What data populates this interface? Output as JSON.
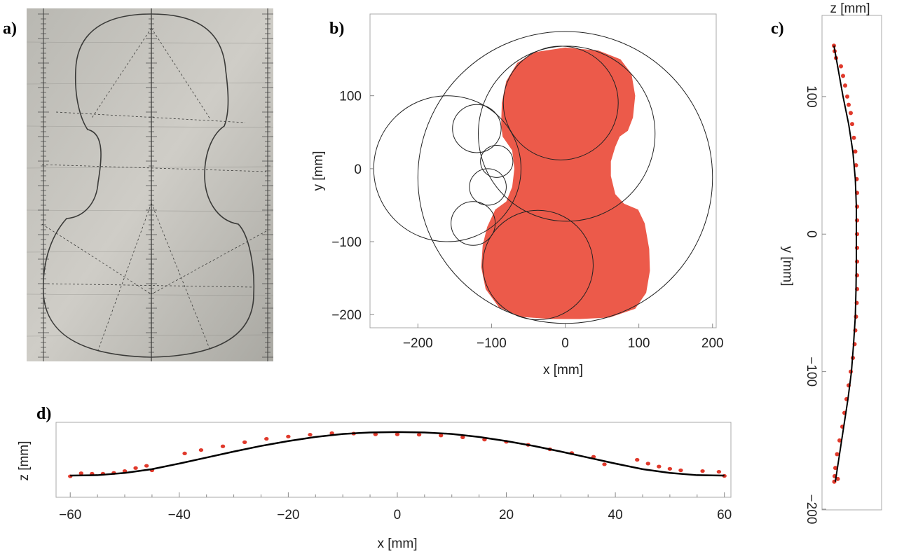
{
  "panels": {
    "a": "a)",
    "b": "b)",
    "c": "c)",
    "d": "d)"
  },
  "colors": {
    "data_points": "#e0392b",
    "region_fill": "#ec5a4a",
    "fit_curve": "#000000",
    "circles": "#222222",
    "frame": "#a8a8a8"
  },
  "photo": {
    "description_icon": "violin-plan-drawing-photo"
  },
  "chart_data": [
    {
      "id": "b",
      "type": "scatter",
      "xlabel": "x [mm]",
      "ylabel": "y [mm]",
      "xlim": [
        -265,
        205
      ],
      "ylim": [
        -218,
        212
      ],
      "xticks": [
        -200,
        -100,
        0,
        100,
        200
      ],
      "xtick_labels": [
        "−200",
        "−100",
        "0",
        "100",
        "200"
      ],
      "yticks": [
        -200,
        -100,
        0,
        100
      ],
      "ytick_labels": [
        "−200",
        "−100",
        "0",
        "100"
      ],
      "grid": false,
      "filled_region": [
        [
          0,
          166
        ],
        [
          45,
          162
        ],
        [
          75,
          150
        ],
        [
          90,
          130
        ],
        [
          95,
          100
        ],
        [
          92,
          70
        ],
        [
          85,
          52
        ],
        [
          74,
          44
        ],
        [
          68,
          30
        ],
        [
          62,
          10
        ],
        [
          62,
          -10
        ],
        [
          68,
          -35
        ],
        [
          80,
          -48
        ],
        [
          99,
          -56
        ],
        [
          108,
          -75
        ],
        [
          114,
          -110
        ],
        [
          115,
          -140
        ],
        [
          110,
          -170
        ],
        [
          95,
          -192
        ],
        [
          60,
          -204
        ],
        [
          20,
          -206
        ],
        [
          -20,
          -206
        ],
        [
          -60,
          -203
        ],
        [
          -90,
          -190
        ],
        [
          -108,
          -165
        ],
        [
          -114,
          -135
        ],
        [
          -112,
          -105
        ],
        [
          -106,
          -80
        ],
        [
          -95,
          -56
        ],
        [
          -80,
          -45
        ],
        [
          -72,
          -25
        ],
        [
          -69,
          0
        ],
        [
          -72,
          25
        ],
        [
          -85,
          44
        ],
        [
          -87,
          60
        ],
        [
          -86,
          90
        ],
        [
          -80,
          120
        ],
        [
          -65,
          145
        ],
        [
          -40,
          160
        ]
      ],
      "circles": [
        {
          "cx": 0,
          "cy": -12,
          "r": 200
        },
        {
          "cx": -160,
          "cy": 0,
          "r": 100
        },
        {
          "cx": 2,
          "cy": 48,
          "r": 120
        },
        {
          "cx": -6,
          "cy": 90,
          "r": 78
        },
        {
          "cx": -37,
          "cy": -132,
          "r": 75
        },
        {
          "cx": -120,
          "cy": 55,
          "r": 33
        },
        {
          "cx": -93,
          "cy": 10,
          "r": 22
        },
        {
          "cx": -105,
          "cy": -25,
          "r": 25
        },
        {
          "cx": -125,
          "cy": -75,
          "r": 30
        }
      ]
    },
    {
      "id": "c",
      "type": "scatter",
      "xlabel": "z [mm]",
      "ylabel": "y [mm]",
      "zlim": [
        0,
        17
      ],
      "ylim": [
        -200.5,
        159
      ],
      "yticks": [
        -200,
        -100,
        0,
        100
      ],
      "ytick_labels": [
        "−200",
        "−100",
        "0",
        "100"
      ],
      "points": [
        [
          137,
          3.4
        ],
        [
          133,
          3.6
        ],
        [
          128,
          4
        ],
        [
          122,
          5.4
        ],
        [
          115,
          6
        ],
        [
          108,
          6.6
        ],
        [
          100,
          7.2
        ],
        [
          94,
          7.6
        ],
        [
          88,
          8.2
        ],
        [
          80,
          8.6
        ],
        [
          70,
          9.1
        ],
        [
          60,
          9.5
        ],
        [
          50,
          9.7
        ],
        [
          40,
          9.9
        ],
        [
          30,
          10
        ],
        [
          20,
          10
        ],
        [
          10,
          10
        ],
        [
          0,
          10
        ],
        [
          -10,
          10
        ],
        [
          -20,
          10
        ],
        [
          -30,
          10
        ],
        [
          -40,
          10
        ],
        [
          -50,
          9.9
        ],
        [
          -60,
          9.7
        ],
        [
          -70,
          9.5
        ],
        [
          -80,
          9.3
        ],
        [
          -90,
          8.8
        ],
        [
          -100,
          8.2
        ],
        [
          -110,
          7.6
        ],
        [
          -120,
          7
        ],
        [
          -130,
          6.4
        ],
        [
          -140,
          5.8
        ],
        [
          -150,
          5
        ],
        [
          -160,
          4.3
        ],
        [
          -170,
          3.8
        ],
        [
          -176,
          3.6
        ],
        [
          -178,
          4.5
        ],
        [
          -180,
          3.5
        ]
      ],
      "fit_curve": [
        [
          137,
          3.4
        ],
        [
          120,
          4.6
        ],
        [
          100,
          6
        ],
        [
          80,
          7.6
        ],
        [
          60,
          8.8
        ],
        [
          40,
          9.5
        ],
        [
          20,
          9.8
        ],
        [
          0,
          9.8
        ],
        [
          -20,
          9.8
        ],
        [
          -40,
          9.7
        ],
        [
          -60,
          9.5
        ],
        [
          -80,
          9.0
        ],
        [
          -100,
          8.4
        ],
        [
          -120,
          7.4
        ],
        [
          -140,
          6.2
        ],
        [
          -160,
          5
        ],
        [
          -180,
          3.8
        ]
      ]
    },
    {
      "id": "d",
      "type": "scatter",
      "xlabel": "x [mm]",
      "ylabel": "z [mm]",
      "xlim": [
        -62.6,
        61.2
      ],
      "zlim": [
        -6.2,
        13.8
      ],
      "xticks": [
        -60,
        -40,
        -20,
        0,
        20,
        40,
        60
      ],
      "xtick_labels": [
        "−60",
        "−40",
        "−20",
        "0",
        "20",
        "40",
        "60"
      ],
      "points": [
        [
          -60,
          -0.6
        ],
        [
          -58,
          0.2
        ],
        [
          -56,
          0.1
        ],
        [
          -54,
          0.1
        ],
        [
          -52,
          0.3
        ],
        [
          -50,
          0.8
        ],
        [
          -48,
          1.6
        ],
        [
          -46,
          2.2
        ],
        [
          -45,
          1.0
        ],
        [
          -39,
          5.5
        ],
        [
          -36,
          6.4
        ],
        [
          -32,
          7.4
        ],
        [
          -28,
          8.5
        ],
        [
          -24,
          9.4
        ],
        [
          -20,
          10.0
        ],
        [
          -16,
          10.5
        ],
        [
          -12,
          10.9
        ],
        [
          -8,
          10.8
        ],
        [
          -4,
          10.6
        ],
        [
          0,
          10.6
        ],
        [
          4,
          10.5
        ],
        [
          8,
          10.3
        ],
        [
          12,
          9.8
        ],
        [
          16,
          9.2
        ],
        [
          20,
          8.6
        ],
        [
          24,
          7.8
        ],
        [
          28,
          6.6
        ],
        [
          32,
          5.6
        ],
        [
          36,
          4.6
        ],
        [
          38,
          2.6
        ],
        [
          44,
          3.8
        ],
        [
          46,
          2.8
        ],
        [
          48,
          2.0
        ],
        [
          50,
          1.4
        ],
        [
          52,
          1.0
        ],
        [
          56,
          0.8
        ],
        [
          59,
          0.6
        ],
        [
          60,
          -0.5
        ]
      ],
      "fit_curve": [
        [
          -60,
          -0.4
        ],
        [
          -55,
          -0.3
        ],
        [
          -50,
          0.3
        ],
        [
          -45,
          1.3
        ],
        [
          -40,
          2.8
        ],
        [
          -35,
          4.4
        ],
        [
          -30,
          6.0
        ],
        [
          -25,
          7.5
        ],
        [
          -20,
          8.8
        ],
        [
          -15,
          9.9
        ],
        [
          -10,
          10.7
        ],
        [
          -5,
          11.1
        ],
        [
          0,
          11.2
        ],
        [
          5,
          11.1
        ],
        [
          10,
          10.7
        ],
        [
          15,
          9.9
        ],
        [
          20,
          8.8
        ],
        [
          25,
          7.5
        ],
        [
          30,
          6.0
        ],
        [
          35,
          4.4
        ],
        [
          40,
          2.8
        ],
        [
          45,
          1.3
        ],
        [
          50,
          0.3
        ],
        [
          55,
          -0.3
        ],
        [
          60,
          -0.4
        ]
      ]
    }
  ]
}
